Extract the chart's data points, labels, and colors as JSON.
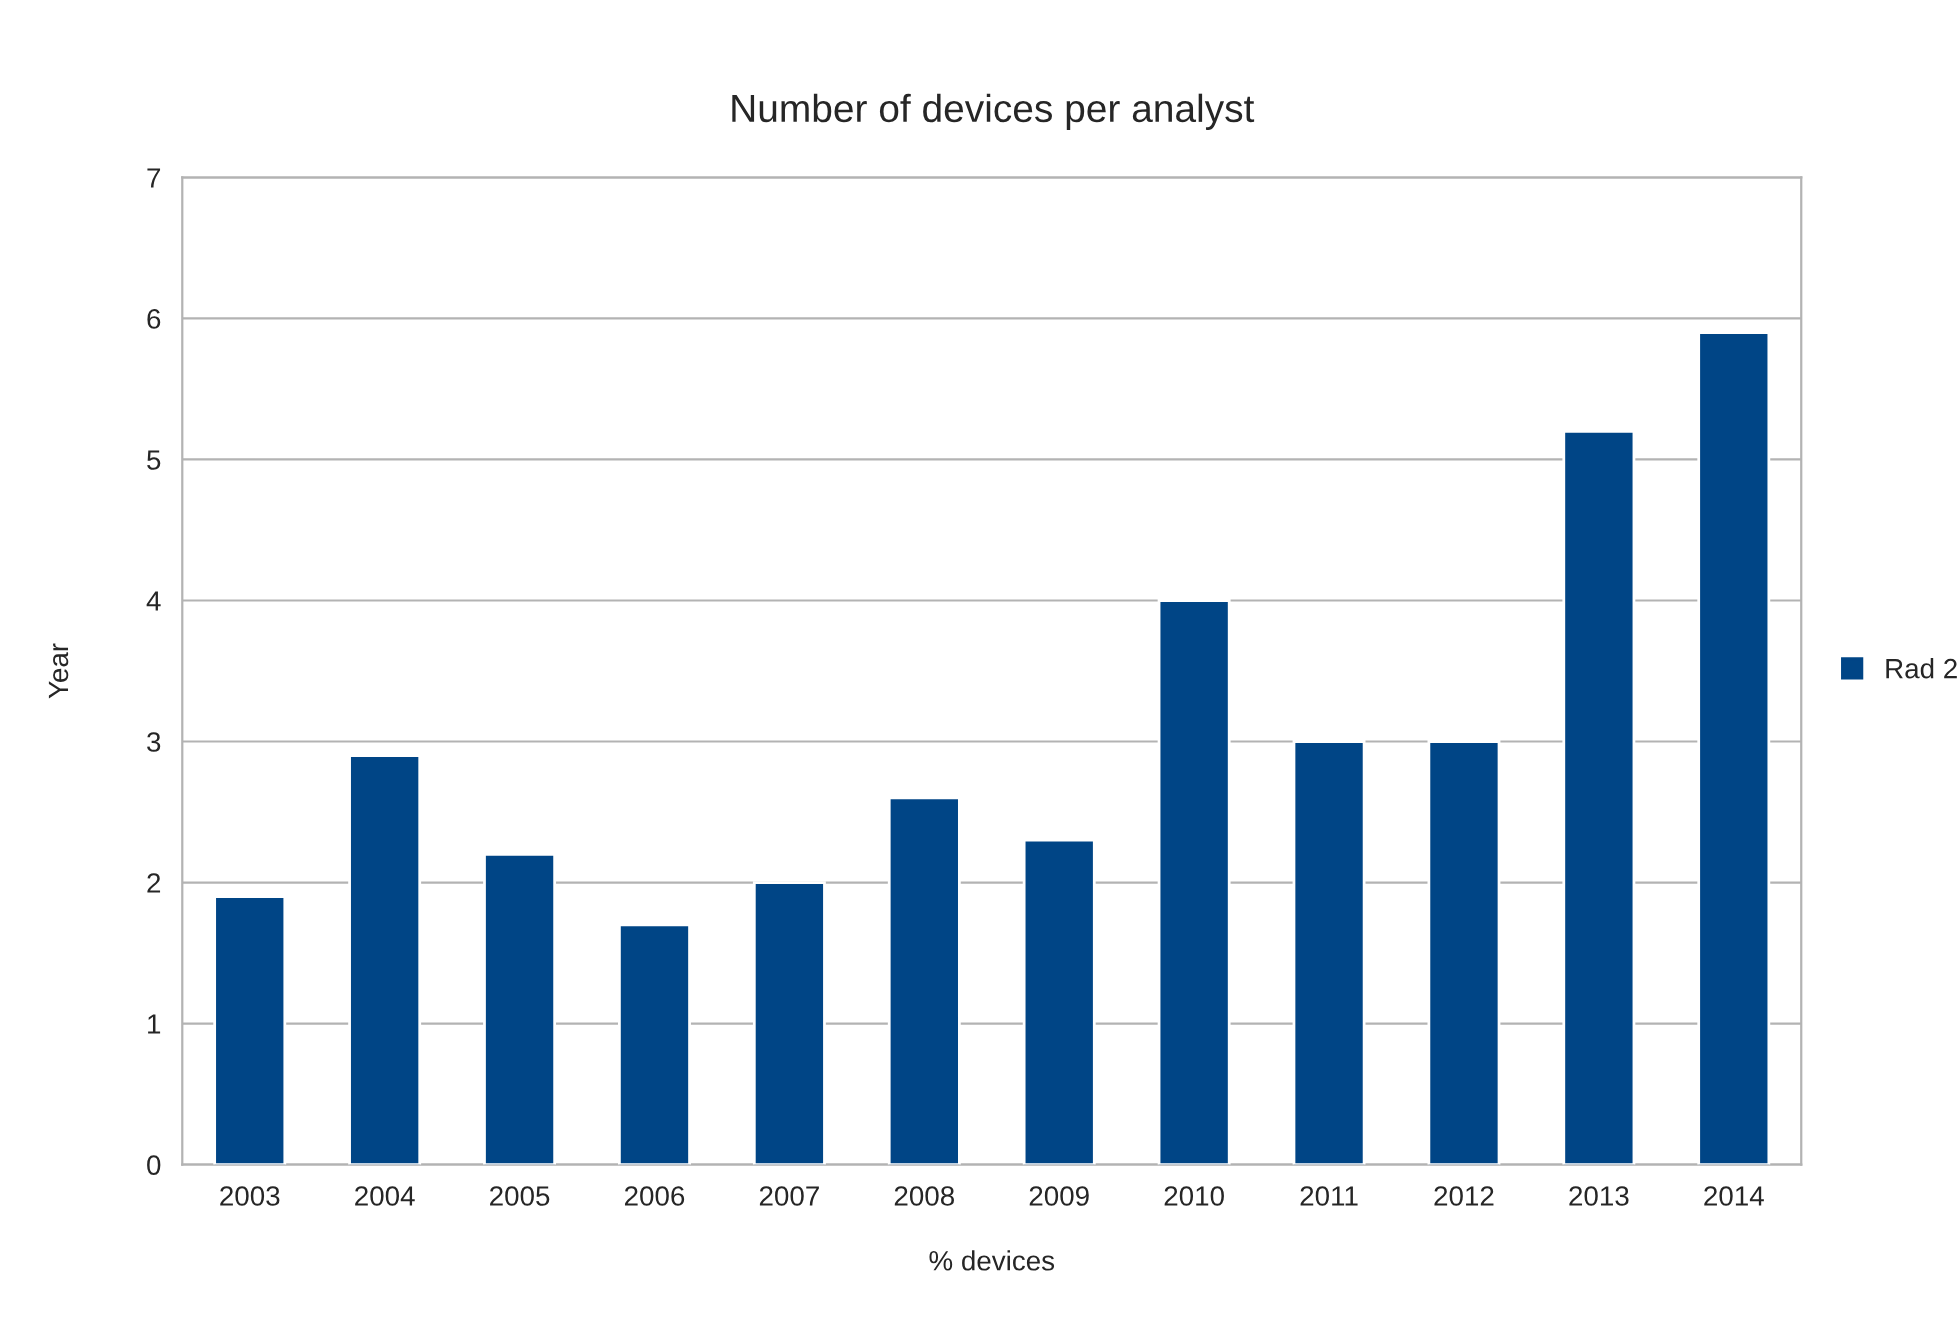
{
  "chart_data": {
    "type": "bar",
    "title": "Number of devices per analyst",
    "xlabel": "% devices",
    "ylabel": "Year",
    "categories": [
      "2003",
      "2004",
      "2005",
      "2006",
      "2007",
      "2008",
      "2009",
      "2010",
      "2011",
      "2012",
      "2013",
      "2014"
    ],
    "series": [
      {
        "name": "Rad 2",
        "color": "#004586",
        "values": [
          1.9,
          2.9,
          2.2,
          1.7,
          2.0,
          2.6,
          2.3,
          4.0,
          3.0,
          3.0,
          5.2,
          5.9
        ]
      }
    ],
    "ylim": [
      0,
      7
    ],
    "yticks": [
      0,
      1,
      2,
      3,
      4,
      5,
      6,
      7
    ],
    "grid": "y",
    "legend": "right"
  }
}
